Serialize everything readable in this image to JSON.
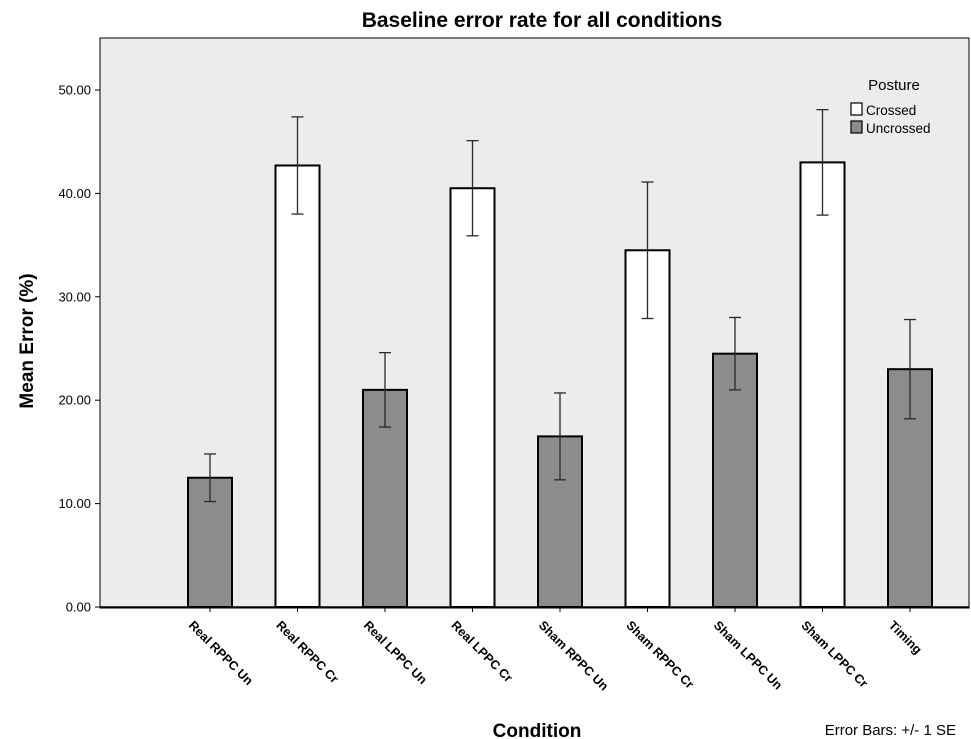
{
  "chart_data": {
    "type": "bar",
    "title": "Baseline error rate for all conditions",
    "xlabel": "Condition",
    "ylabel": "Mean Error (%)",
    "ylim": [
      0,
      55
    ],
    "yticks": [
      "0.00",
      "10.00",
      "20.00",
      "30.00",
      "40.00",
      "50.00"
    ],
    "grid": false,
    "legend": {
      "title": "Posture",
      "placement": "top-right",
      "entries": [
        {
          "name": "Crossed",
          "color": "#ffffff"
        },
        {
          "name": "Uncrossed",
          "color": "#8c8c8c"
        }
      ]
    },
    "categories": [
      "Real RPPC Un",
      "Real RPPC Cr",
      "Real LPPC Un",
      "Real LPPC Cr",
      "Sham RPPC Un",
      "Sham RPPC Cr",
      "Sham LPPC Un",
      "Sham LPPC Cr",
      "Timing"
    ],
    "series": [
      {
        "name": "Uncrossed",
        "color": "#8c8c8c",
        "points": [
          {
            "category": "Real RPPC Un",
            "value": 12.5,
            "error": 2.3
          },
          {
            "category": "Real LPPC Un",
            "value": 21.0,
            "error": 3.6
          },
          {
            "category": "Sham RPPC Un",
            "value": 16.5,
            "error": 4.2
          },
          {
            "category": "Sham LPPC Un",
            "value": 24.5,
            "error": 3.5
          },
          {
            "category": "Timing",
            "value": 23.0,
            "error": 4.8
          }
        ]
      },
      {
        "name": "Crossed",
        "color": "#ffffff",
        "points": [
          {
            "category": "Real RPPC Cr",
            "value": 42.7,
            "error": 4.7
          },
          {
            "category": "Real LPPC Cr",
            "value": 40.5,
            "error": 4.6
          },
          {
            "category": "Sham RPPC Cr",
            "value": 34.5,
            "error": 6.6
          },
          {
            "category": "Sham LPPC Cr",
            "value": 43.0,
            "error": 5.1
          }
        ]
      }
    ],
    "error_bar_note": "Error Bars: +/- 1 SE",
    "colors": {
      "plot_background": "#ececec",
      "bar_outline": "#000000",
      "error_bar": "#2a2a2a"
    }
  }
}
